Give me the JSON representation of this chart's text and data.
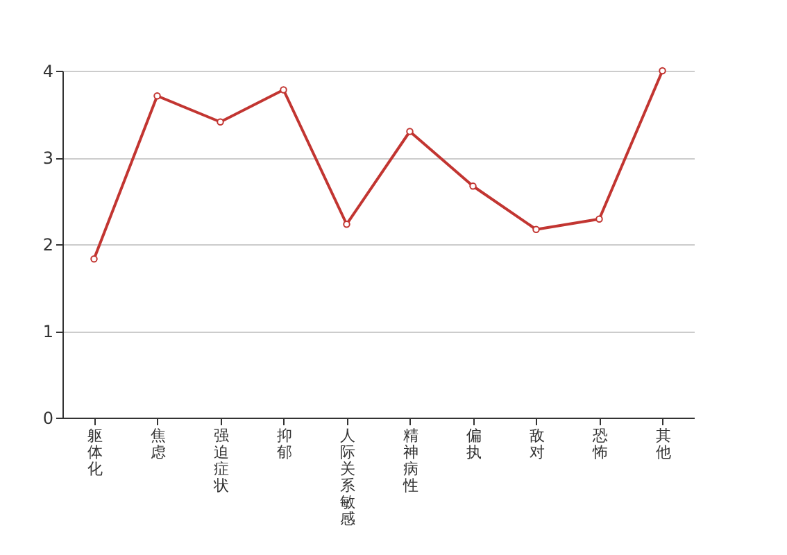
{
  "chart_data": {
    "type": "line",
    "categories": [
      "躯体化",
      "焦虑",
      "强迫症状",
      "抑郁",
      "人际关系敏感",
      "精神病性",
      "偏执",
      "敌对",
      "恐怖",
      "其他"
    ],
    "series": [
      {
        "color": "#c23531",
        "values": [
          1.83,
          3.71,
          3.41,
          3.78,
          2.23,
          3.3,
          2.67,
          2.17,
          2.29,
          4.0
        ]
      }
    ],
    "ylim": [
      0,
      4
    ],
    "yticks": [
      0,
      1,
      2,
      3,
      4
    ],
    "grid": "y",
    "marker": "circle"
  }
}
